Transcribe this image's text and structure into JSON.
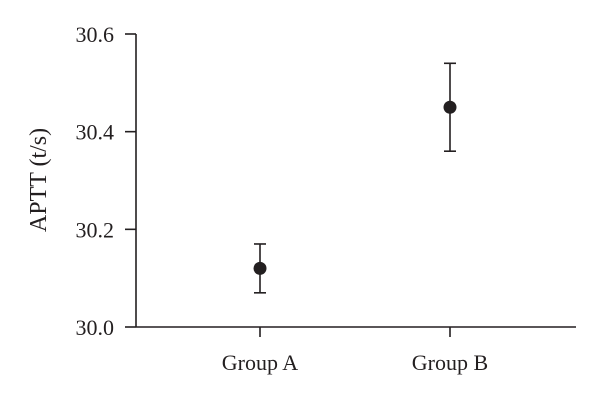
{
  "chart_data": {
    "type": "scatter",
    "title": "",
    "xlabel": "",
    "ylabel": "APTT (t/s)",
    "ylim": [
      30.0,
      30.6
    ],
    "yticks": [
      "30.0",
      "30.2",
      "30.4",
      "30.6"
    ],
    "grid": false,
    "categories": [
      "Group A",
      "Group B"
    ],
    "points": [
      {
        "category": "Group A",
        "value": 30.12,
        "error_low": 30.07,
        "error_high": 30.17
      },
      {
        "category": "Group B",
        "value": 30.45,
        "error_low": 30.36,
        "error_high": 30.54
      }
    ],
    "marker_color": "#231f20",
    "axis_color": "#231f20"
  }
}
